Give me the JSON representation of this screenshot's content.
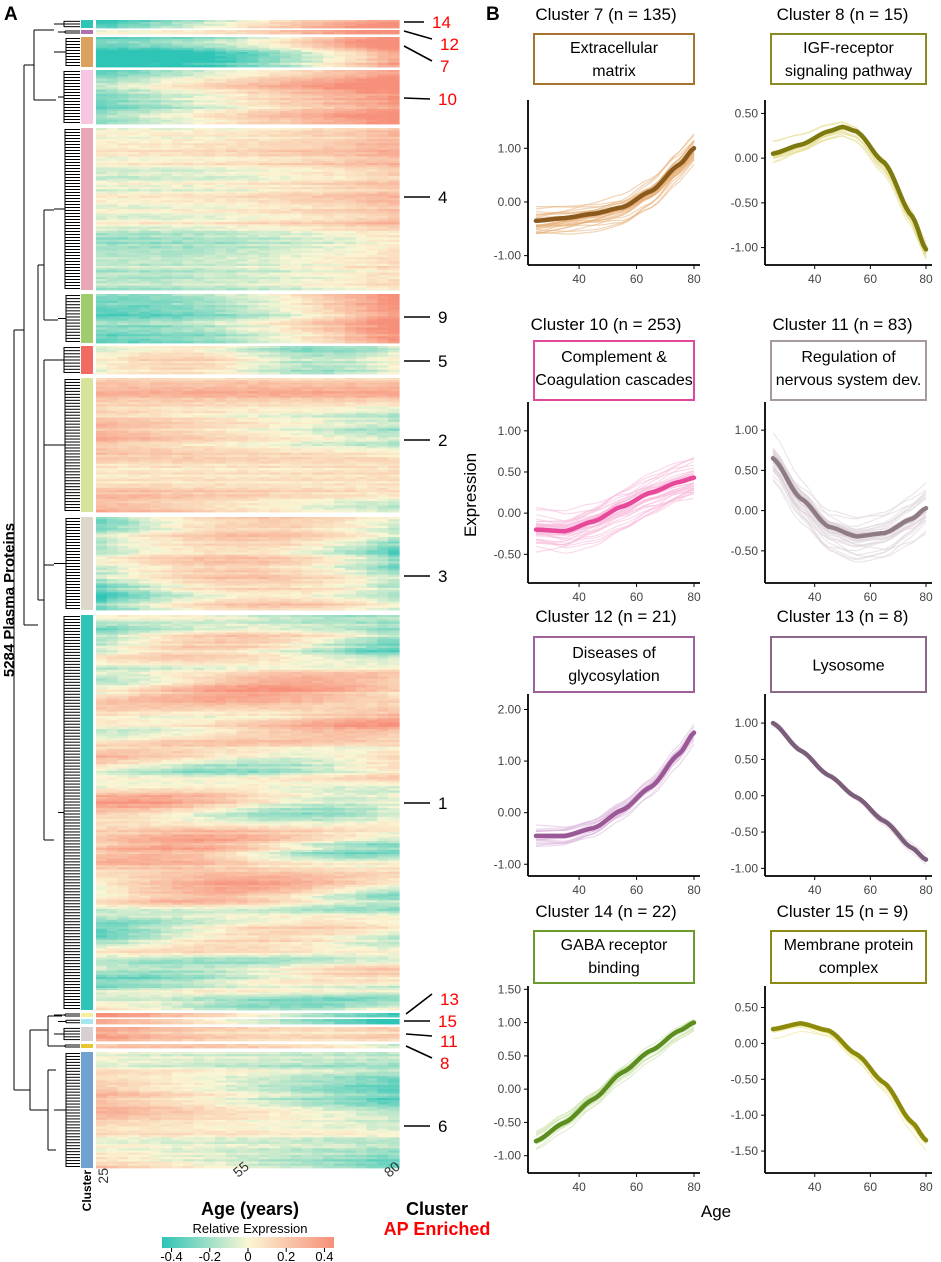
{
  "figure": {
    "panel_a_label": "A",
    "panel_b_label": "B",
    "colors": {
      "teal": "#2ec4b6",
      "cream": "#fbf6d4",
      "salmon": "#f7907a",
      "red": "#ff0000",
      "black": "#000000"
    }
  },
  "chart_data": [
    {
      "type": "heatmap",
      "title": "",
      "ylabel": "5284 Plasma Proteins",
      "xlabel": "Age (years)",
      "x_ticks": [
        "25",
        "55",
        "80"
      ],
      "cluster_axis_label": "Cluster",
      "right_header": "Cluster",
      "right_subheader": "AP Enriched",
      "legend": {
        "title": "Relative Expression",
        "ticks": [
          "-0.4",
          "-0.2",
          "0",
          "0.2",
          "0.4"
        ],
        "range": [
          -0.45,
          0.45
        ]
      },
      "clusters": [
        {
          "label": "14",
          "ap_enriched": true,
          "color": "#2ec4b6",
          "proteins": 22
        },
        {
          "label": "12",
          "ap_enriched": true,
          "color": "#b06fb0",
          "proteins": 21
        },
        {
          "label": "7",
          "ap_enriched": true,
          "color": "#dba15e",
          "proteins": 135
        },
        {
          "label": "10",
          "ap_enriched": true,
          "color": "#f9c6e2",
          "proteins": 253
        },
        {
          "label": "4",
          "ap_enriched": false,
          "color": "#e7a7b6",
          "proteins": 580
        },
        {
          "label": "9",
          "ap_enriched": false,
          "color": "#9fcc6c",
          "proteins": 225
        },
        {
          "label": "5",
          "ap_enriched": false,
          "color": "#f26b61",
          "proteins": 135
        },
        {
          "label": "2",
          "ap_enriched": false,
          "color": "#d7e59b",
          "proteins": 615
        },
        {
          "label": "3",
          "ap_enriched": false,
          "color": "#dcd9cb",
          "proteins": 560
        },
        {
          "label": "1",
          "ap_enriched": false,
          "color": "#2ec4b6",
          "proteins": 1750
        },
        {
          "label": "13",
          "ap_enriched": true,
          "color": "#f4f09c",
          "proteins": 8
        },
        {
          "label": "15",
          "ap_enriched": true,
          "color": "#a6e7ef",
          "proteins": 9
        },
        {
          "label": "11",
          "ap_enriched": true,
          "color": "#d6d0d4",
          "proteins": 83
        },
        {
          "label": "8",
          "ap_enriched": true,
          "color": "#e8c630",
          "proteins": 15
        },
        {
          "label": "6",
          "ap_enriched": false,
          "color": "#6fa3cf",
          "proteins": 873
        }
      ]
    },
    {
      "type": "line",
      "xlabel": "Age",
      "ylabel": "Expression",
      "panels": [
        {
          "title": "Cluster 7 (n = 135)",
          "term": [
            "Extracellular",
            "matrix"
          ],
          "color": "#8a5a1d",
          "light": "#e7b07a",
          "box": "#a87432",
          "ylim": [
            -1.1,
            1.9
          ],
          "yticks": [
            1.0,
            0.0,
            -1.0
          ],
          "ytick_labels": [
            "1.00",
            "0.00",
            "-1.00"
          ],
          "xticks": [
            "40",
            "60",
            "80"
          ],
          "spread": 0.35,
          "n_lines": 30,
          "x": [
            25,
            35,
            45,
            55,
            65,
            75,
            80
          ],
          "y": [
            -0.35,
            -0.3,
            -0.22,
            -0.1,
            0.2,
            0.7,
            1.0
          ]
        },
        {
          "title": "Cluster 8 (n = 15)",
          "term": [
            "IGF-receptor",
            "signaling pathway"
          ],
          "color": "#7d7a10",
          "light": "#e6dd8c",
          "box": "#8a8a22",
          "ylim": [
            -1.15,
            0.65
          ],
          "yticks": [
            0.5,
            0.0,
            -0.5,
            -1.0
          ],
          "ytick_labels": [
            "0.50",
            "0.00",
            "-0.50",
            "-1.00"
          ],
          "xticks": [
            "40",
            "60",
            "80"
          ],
          "spread": 0.15,
          "n_lines": 15,
          "x": [
            25,
            35,
            45,
            50,
            55,
            65,
            75,
            80
          ],
          "y": [
            0.05,
            0.15,
            0.3,
            0.35,
            0.3,
            -0.05,
            -0.65,
            -1.02
          ]
        },
        {
          "title": "Cluster 10 (n = 253)",
          "term": [
            "Complement &",
            "Coagulation cascades"
          ],
          "color": "#e8489a",
          "light": "#f8b9da",
          "box": "#e0489a",
          "ylim": [
            -0.8,
            1.35
          ],
          "yticks": [
            1.0,
            0.5,
            0.0,
            -0.5
          ],
          "ytick_labels": [
            "1.00",
            "0.50",
            "0.00",
            "-0.50"
          ],
          "xticks": [
            "40",
            "60",
            "80"
          ],
          "spread": 0.3,
          "n_lines": 40,
          "x": [
            25,
            35,
            45,
            55,
            65,
            75,
            80
          ],
          "y": [
            -0.2,
            -0.22,
            -0.1,
            0.08,
            0.25,
            0.38,
            0.43
          ]
        },
        {
          "title": "Cluster 11 (n = 83)",
          "term": [
            "Regulation of",
            "nervous system dev."
          ],
          "color": "#8f7b84",
          "light": "#ddd2d8",
          "box": "#a49aa0",
          "ylim": [
            -0.85,
            1.35
          ],
          "yticks": [
            1.0,
            0.5,
            0.0,
            -0.5
          ],
          "ytick_labels": [
            "1.00",
            "0.50",
            "0.00",
            "-0.50"
          ],
          "xticks": [
            "40",
            "60",
            "80"
          ],
          "spread": 0.35,
          "n_lines": 35,
          "x": [
            25,
            35,
            45,
            55,
            65,
            75,
            80
          ],
          "y": [
            0.65,
            0.15,
            -0.2,
            -0.32,
            -0.28,
            -0.1,
            0.03
          ]
        },
        {
          "title": "Cluster 12 (n = 21)",
          "term": [
            "Diseases of",
            "glycosylation"
          ],
          "color": "#9a5896",
          "light": "#dcb8dc",
          "box": "#a0609c",
          "ylim": [
            -1.15,
            2.3
          ],
          "yticks": [
            2.0,
            1.0,
            0.0,
            -1.0
          ],
          "ytick_labels": [
            "2.00",
            "1.00",
            "0.00",
            "-1.00"
          ],
          "xticks": [
            "40",
            "60",
            "80"
          ],
          "spread": 0.25,
          "n_lines": 20,
          "x": [
            25,
            35,
            45,
            55,
            65,
            75,
            80
          ],
          "y": [
            -0.45,
            -0.45,
            -0.3,
            0.05,
            0.5,
            1.15,
            1.55
          ]
        },
        {
          "title": "Cluster 13 (n = 8)",
          "term": [
            "Lysosome"
          ],
          "color": "#7d5e7a",
          "light": "#d9c6d6",
          "box": "#8a6a86",
          "ylim": [
            -1.05,
            1.4
          ],
          "yticks": [
            1.0,
            0.5,
            0.0,
            -0.5,
            -1.0
          ],
          "ytick_labels": [
            "1.00",
            "0.50",
            "0.00",
            "-0.50",
            "-1.00"
          ],
          "xticks": [
            "40",
            "60",
            "80"
          ],
          "spread": 0.08,
          "n_lines": 8,
          "x": [
            25,
            35,
            45,
            55,
            65,
            75,
            80
          ],
          "y": [
            1.0,
            0.62,
            0.28,
            -0.02,
            -0.35,
            -0.72,
            -0.88
          ]
        },
        {
          "title": "Cluster 14 (n = 22)",
          "term": [
            "GABA receptor",
            "binding"
          ],
          "color": "#5b8e1e",
          "light": "#c9e2a7",
          "box": "#6c9a2d",
          "ylim": [
            -1.2,
            1.55
          ],
          "yticks": [
            1.5,
            1.0,
            0.5,
            0.0,
            -0.5,
            -1.0
          ],
          "ytick_labels": [
            "1.50",
            "1.00",
            "0.50",
            "0.00",
            "-0.50",
            "-1.00"
          ],
          "xticks": [
            "40",
            "60",
            "80"
          ],
          "spread": 0.15,
          "n_lines": 20,
          "x": [
            25,
            35,
            45,
            55,
            65,
            75,
            80
          ],
          "y": [
            -0.78,
            -0.5,
            -0.15,
            0.25,
            0.58,
            0.88,
            1.0
          ]
        },
        {
          "title": "Cluster 15 (n = 9)",
          "term": [
            "Membrane protein",
            "complex"
          ],
          "color": "#8c8a0a",
          "light": "#ede58e",
          "box": "#8c8a12",
          "ylim": [
            -1.75,
            0.8
          ],
          "yticks": [
            0.5,
            0.0,
            -0.5,
            -1.0,
            -1.5
          ],
          "ytick_labels": [
            "0.50",
            "0.00",
            "-0.50",
            "-1.00",
            "-1.50"
          ],
          "xticks": [
            "40",
            "60",
            "80"
          ],
          "spread": 0.15,
          "n_lines": 9,
          "x": [
            25,
            35,
            45,
            55,
            65,
            75,
            80
          ],
          "y": [
            0.2,
            0.28,
            0.18,
            -0.15,
            -0.55,
            -1.1,
            -1.35
          ]
        }
      ]
    }
  ]
}
